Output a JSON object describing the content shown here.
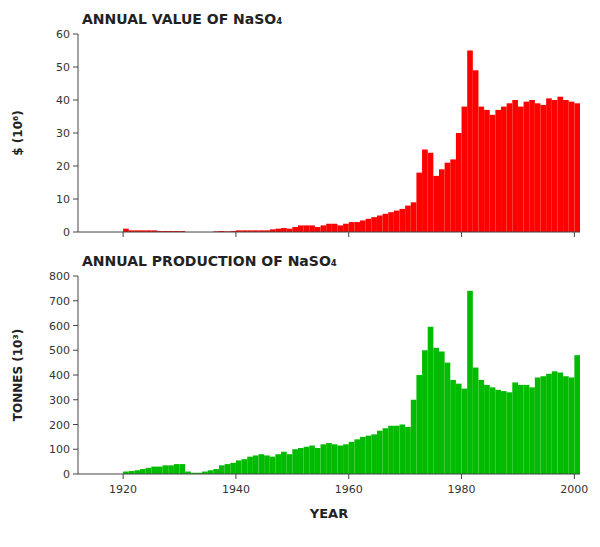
{
  "chart_data": [
    {
      "type": "bar",
      "title": "ANNUAL VALUE OF NaSO₄",
      "ylabel": "$ (10⁶)",
      "x": [
        1912,
        1913,
        1914,
        1915,
        1916,
        1917,
        1918,
        1919,
        1920,
        1921,
        1922,
        1923,
        1924,
        1925,
        1926,
        1927,
        1928,
        1929,
        1930,
        1931,
        1932,
        1933,
        1934,
        1935,
        1936,
        1937,
        1938,
        1939,
        1940,
        1941,
        1942,
        1943,
        1944,
        1945,
        1946,
        1947,
        1948,
        1949,
        1950,
        1951,
        1952,
        1953,
        1954,
        1955,
        1956,
        1957,
        1958,
        1959,
        1960,
        1961,
        1962,
        1963,
        1964,
        1965,
        1966,
        1967,
        1968,
        1969,
        1970,
        1971,
        1972,
        1973,
        1974,
        1975,
        1976,
        1977,
        1978,
        1979,
        1980,
        1981,
        1982,
        1983,
        1984,
        1985,
        1986,
        1987,
        1988,
        1989,
        1990,
        1991,
        1992,
        1993,
        1994,
        1995,
        1996,
        1997,
        1998,
        1999,
        2000
      ],
      "values": [
        0,
        0,
        0,
        0,
        0,
        0,
        0,
        0,
        1,
        0.5,
        0.5,
        0.5,
        0.5,
        0.5,
        0.3,
        0.3,
        0.3,
        0.3,
        0.3,
        0,
        0,
        0,
        0,
        0,
        0.2,
        0.3,
        0.2,
        0.3,
        0.5,
        0.5,
        0.5,
        0.5,
        0.5,
        0.5,
        0.8,
        1.0,
        1.2,
        1.0,
        1.5,
        2.0,
        2.0,
        2.0,
        1.5,
        2.0,
        2.5,
        2.5,
        2.0,
        2.5,
        3.0,
        3.0,
        3.5,
        4.0,
        4.5,
        5.0,
        5.5,
        6.0,
        6.5,
        7.0,
        8.0,
        9.0,
        18.0,
        25.0,
        24.0,
        17.0,
        19.0,
        21.0,
        22.0,
        30.0,
        38.0,
        55.0,
        49.0,
        38.0,
        37.0,
        35.5,
        37.0,
        38.0,
        39.0,
        40.0,
        38.0,
        39.5,
        40.0,
        39.0,
        38.5,
        40.5,
        40.0,
        41.0,
        40.0,
        39.5,
        39.0
      ],
      "color": "#FF0000",
      "xlim": [
        1912,
        2001
      ],
      "xticks": [
        1920,
        1940,
        1960,
        1980,
        2000
      ],
      "ylim": [
        0,
        60
      ],
      "yticks": [
        0,
        10,
        20,
        30,
        40,
        50,
        60
      ],
      "grid": false,
      "tick_labels": "y"
    },
    {
      "type": "bar",
      "title": "ANNUAL PRODUCTION OF NaSO₄",
      "ylabel": "TONNES (10³)",
      "xlabel": "YEAR",
      "x": [
        1912,
        1913,
        1914,
        1915,
        1916,
        1917,
        1918,
        1919,
        1920,
        1921,
        1922,
        1923,
        1924,
        1925,
        1926,
        1927,
        1928,
        1929,
        1930,
        1931,
        1932,
        1933,
        1934,
        1935,
        1936,
        1937,
        1938,
        1939,
        1940,
        1941,
        1942,
        1943,
        1944,
        1945,
        1946,
        1947,
        1948,
        1949,
        1950,
        1951,
        1952,
        1953,
        1954,
        1955,
        1956,
        1957,
        1958,
        1959,
        1960,
        1961,
        1962,
        1963,
        1964,
        1965,
        1966,
        1967,
        1968,
        1969,
        1970,
        1971,
        1972,
        1973,
        1974,
        1975,
        1976,
        1977,
        1978,
        1979,
        1980,
        1981,
        1982,
        1983,
        1984,
        1985,
        1986,
        1987,
        1988,
        1989,
        1990,
        1991,
        1992,
        1993,
        1994,
        1995,
        1996,
        1997,
        1998,
        1999,
        2000
      ],
      "values": [
        0,
        0,
        0,
        0,
        0,
        0,
        0,
        0,
        10,
        12,
        15,
        20,
        25,
        30,
        30,
        35,
        35,
        40,
        40,
        10,
        5,
        5,
        10,
        15,
        20,
        35,
        40,
        45,
        55,
        60,
        70,
        75,
        80,
        75,
        70,
        80,
        90,
        80,
        100,
        105,
        110,
        115,
        105,
        120,
        125,
        120,
        115,
        120,
        130,
        140,
        150,
        155,
        160,
        175,
        185,
        195,
        195,
        200,
        190,
        300,
        400,
        500,
        595,
        510,
        495,
        450,
        380,
        365,
        345,
        740,
        430,
        380,
        360,
        350,
        340,
        335,
        330,
        370,
        360,
        360,
        350,
        390,
        395,
        405,
        415,
        410,
        395,
        390,
        480
      ],
      "color": "#00BB00",
      "xlim": [
        1912,
        2001
      ],
      "xticks": [
        1920,
        1940,
        1960,
        1980,
        2000
      ],
      "ylim": [
        0,
        800
      ],
      "yticks": [
        0,
        100,
        200,
        300,
        400,
        500,
        600,
        700,
        800
      ],
      "grid": false
    }
  ]
}
